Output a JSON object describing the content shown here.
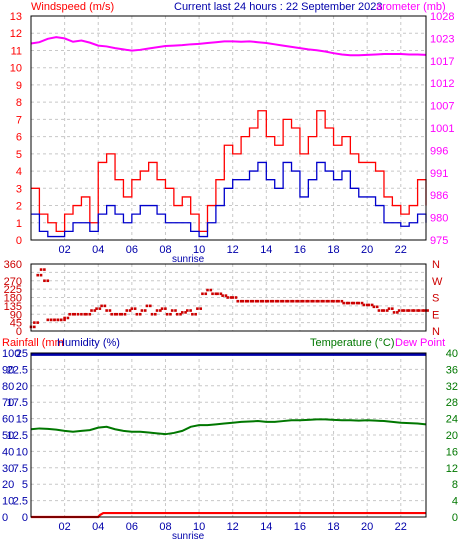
{
  "header": {
    "left_label": "Windspeed (m/s)",
    "center_label": "Current last 24 hours : 22 September 2023",
    "right_label": "arometer (mb)"
  },
  "x_axis": {
    "hour_ticks": [
      "02",
      "04",
      "06",
      "08",
      "10",
      "12",
      "14",
      "16",
      "18",
      "20",
      "22"
    ],
    "sunrise_label": "sunrise"
  },
  "colors": {
    "wind_gust": "#ff0000",
    "wind_avg": "#0000cc",
    "barometer": "#ff00ff",
    "direction": "#cc0000",
    "humidity": "#0000aa",
    "temperature": "#007700",
    "rainfall": "#ff0000",
    "dewpoint": "#ff00ff",
    "grid": "#c8c8c8"
  },
  "chart_data": [
    {
      "type": "line",
      "panel": "wind_barometer",
      "left_axis": {
        "label": "Windspeed (m/s)",
        "ticks": [
          "0",
          "1",
          "2",
          "3",
          "4",
          "5",
          "6",
          "7",
          "8",
          "9",
          "10",
          "11",
          "12",
          "13"
        ],
        "range": [
          0,
          13
        ]
      },
      "right_axis": {
        "label": "arometer (mb)",
        "ticks": [
          "975",
          "980",
          "986",
          "991",
          "996",
          "1001",
          "1007",
          "1012",
          "1017",
          "1023",
          "1028"
        ],
        "range": [
          975,
          1028
        ]
      },
      "x_range_hours": [
        0,
        23.5
      ],
      "series": [
        {
          "name": "Barometer",
          "axis": "right",
          "x": [
            0,
            0.5,
            1,
            1.5,
            2,
            2.5,
            3,
            3.5,
            4,
            4.5,
            5,
            5.5,
            6,
            6.5,
            7,
            7.5,
            8,
            8.5,
            9,
            9.5,
            10,
            10.5,
            11,
            11.5,
            12,
            12.5,
            13,
            13.5,
            14,
            14.5,
            15,
            15.5,
            16,
            16.5,
            17,
            17.5,
            18,
            18.5,
            19,
            19.5,
            20,
            20.5,
            21,
            21.5,
            22,
            22.5,
            23,
            23.5
          ],
          "values": [
            1021.5,
            1021.8,
            1022.6,
            1023.0,
            1022.7,
            1021.9,
            1022.2,
            1021.7,
            1021.0,
            1020.8,
            1020.4,
            1020.1,
            1019.8,
            1020.0,
            1020.3,
            1020.6,
            1020.9,
            1021.0,
            1021.1,
            1021.3,
            1021.4,
            1021.6,
            1021.8,
            1022.0,
            1022.0,
            1021.9,
            1022.0,
            1021.8,
            1021.6,
            1021.3,
            1021.0,
            1020.7,
            1020.4,
            1020.1,
            1019.9,
            1019.6,
            1019.2,
            1018.9,
            1018.7,
            1018.7,
            1018.8,
            1018.9,
            1019.0,
            1019.0,
            1019.0,
            1018.9,
            1018.9,
            1018.8
          ]
        },
        {
          "name": "Wind gust",
          "axis": "left",
          "x": [
            0,
            0.5,
            1,
            1.5,
            2,
            2.5,
            3,
            3.5,
            4,
            4.5,
            5,
            5.5,
            6,
            6.5,
            7,
            7.5,
            8,
            8.5,
            9,
            9.5,
            10,
            10.5,
            11,
            11.5,
            12,
            12.5,
            13,
            13.5,
            14,
            14.5,
            15,
            15.5,
            16,
            16.5,
            17,
            17.5,
            18,
            18.5,
            19,
            19.5,
            20,
            20.5,
            21,
            21.5,
            22,
            22.5,
            23,
            23.5
          ],
          "values": [
            3.0,
            1.5,
            1.0,
            0.5,
            1.5,
            2.0,
            2.5,
            1.0,
            4.5,
            5.0,
            3.5,
            2.5,
            3.5,
            4.0,
            4.5,
            3.5,
            3.0,
            2.0,
            2.5,
            1.5,
            0.5,
            2.0,
            3.5,
            5.5,
            5.0,
            6.0,
            6.5,
            7.5,
            6.0,
            5.5,
            7.0,
            6.5,
            5.0,
            6.0,
            7.5,
            6.5,
            5.5,
            6.0,
            5.0,
            4.5,
            4.5,
            4.0,
            2.5,
            2.0,
            1.5,
            2.0,
            3.5,
            2.0
          ]
        },
        {
          "name": "Wind average",
          "axis": "left",
          "x": [
            0,
            0.5,
            1,
            1.5,
            2,
            2.5,
            3,
            3.5,
            4,
            4.5,
            5,
            5.5,
            6,
            6.5,
            7,
            7.5,
            8,
            8.5,
            9,
            9.5,
            10,
            10.5,
            11,
            11.5,
            12,
            12.5,
            13,
            13.5,
            14,
            14.5,
            15,
            15.5,
            16,
            16.5,
            17,
            17.5,
            18,
            18.5,
            19,
            19.5,
            20,
            20.5,
            21,
            21.5,
            22,
            22.5,
            23,
            23.5
          ],
          "values": [
            1.5,
            0.5,
            0.2,
            0.2,
            0.5,
            1.0,
            1.0,
            0.5,
            1.5,
            2.0,
            1.5,
            1.0,
            1.5,
            2.0,
            2.0,
            1.5,
            1.0,
            1.0,
            1.0,
            0.5,
            0.2,
            1.0,
            2.0,
            3.0,
            3.5,
            3.5,
            4.0,
            4.5,
            3.5,
            3.0,
            4.5,
            4.0,
            2.5,
            3.5,
            4.5,
            4.0,
            3.5,
            4.0,
            3.0,
            2.5,
            2.5,
            2.0,
            1.0,
            1.0,
            0.8,
            1.0,
            1.5,
            1.0
          ]
        }
      ]
    },
    {
      "type": "scatter",
      "panel": "wind_direction",
      "left_axis": {
        "ticks": [
          "0",
          "45",
          "90",
          "135",
          "180",
          "225",
          "270",
          "315",
          "360"
        ],
        "range": [
          0,
          360
        ]
      },
      "right_axis": {
        "ticks": [
          "N",
          "E",
          "S",
          "W",
          "N"
        ],
        "range": [
          0,
          360
        ]
      },
      "x_range_hours": [
        0,
        23.5
      ],
      "series": [
        {
          "name": "Wind direction",
          "x": [
            0,
            0.2,
            0.4,
            0.6,
            0.8,
            1.0,
            1.2,
            1.4,
            1.6,
            1.8,
            2.0,
            2.3,
            2.6,
            3.0,
            3.3,
            3.6,
            3.9,
            4.2,
            4.5,
            4.8,
            5.1,
            5.4,
            5.7,
            6.0,
            6.3,
            6.6,
            6.9,
            7.2,
            7.5,
            7.8,
            8.1,
            8.4,
            8.7,
            9.0,
            9.3,
            9.6,
            9.9,
            10.2,
            10.5,
            10.8,
            11.1,
            11.4,
            11.7,
            12.0,
            12.3,
            12.6,
            12.9,
            13.2,
            13.5,
            13.8,
            14.1,
            14.4,
            14.7,
            15.0,
            15.3,
            15.6,
            15.9,
            16.2,
            16.5,
            16.8,
            17.1,
            17.4,
            17.7,
            18.0,
            18.3,
            18.6,
            18.9,
            19.2,
            19.5,
            19.8,
            20.1,
            20.4,
            20.7,
            21.0,
            21.3,
            21.6,
            21.9,
            22.2,
            22.5,
            22.8,
            23.1,
            23.4
          ],
          "values": [
            22,
            45,
            300,
            330,
            270,
            60,
            60,
            60,
            60,
            60,
            70,
            90,
            90,
            90,
            90,
            110,
            120,
            135,
            110,
            90,
            90,
            90,
            110,
            120,
            90,
            110,
            135,
            90,
            110,
            120,
            90,
            110,
            90,
            100,
            110,
            90,
            120,
            200,
            220,
            200,
            200,
            190,
            180,
            180,
            160,
            160,
            160,
            160,
            160,
            160,
            160,
            160,
            160,
            160,
            160,
            160,
            160,
            160,
            160,
            160,
            160,
            160,
            160,
            160,
            160,
            150,
            150,
            150,
            150,
            140,
            140,
            130,
            110,
            110,
            120,
            100,
            110,
            110,
            110,
            110,
            110,
            110
          ]
        }
      ]
    },
    {
      "type": "line",
      "panel": "rain_humidity_temperature",
      "left_axis": {
        "labels": [
          "Rainfall (mm",
          "Humidity (%)"
        ],
        "ticks": [
          "0",
          "10",
          "20",
          "30",
          "40",
          "50",
          "60",
          "70",
          "80",
          "90",
          "100"
        ],
        "range": [
          0,
          100
        ]
      },
      "left_inner_axis": {
        "ticks": [
          "0",
          "2.5",
          "5",
          "7.5",
          "10",
          "12.5",
          "15",
          "17.5",
          "20",
          "22.5",
          "25"
        ],
        "range": [
          0,
          25
        ]
      },
      "right_axis": {
        "labels": [
          "Temperature (°C)",
          "Dew Point"
        ],
        "ticks": [
          "0",
          "4",
          "8",
          "12",
          "16",
          "20",
          "24",
          "28",
          "32",
          "36",
          "40"
        ],
        "range": [
          0,
          40
        ]
      },
      "x_range_hours": [
        0,
        23.5
      ],
      "series": [
        {
          "name": "Humidity",
          "axis": "left",
          "x": [
            0,
            23.5
          ],
          "values": [
            99,
            99
          ]
        },
        {
          "name": "Temperature",
          "axis": "right",
          "x": [
            0,
            0.5,
            1,
            1.5,
            2,
            2.5,
            3,
            3.5,
            4,
            4.5,
            5,
            5.5,
            6,
            6.5,
            7,
            7.5,
            8,
            8.5,
            9,
            9.5,
            10,
            10.5,
            11,
            11.5,
            12,
            12.5,
            13,
            13.5,
            14,
            14.5,
            15,
            15.5,
            16,
            16.5,
            17,
            17.5,
            18,
            18.5,
            19,
            19.5,
            20,
            20.5,
            21,
            21.5,
            22,
            22.5,
            23,
            23.5
          ],
          "values": [
            21.4,
            21.6,
            21.5,
            21.3,
            21.0,
            20.8,
            21.0,
            21.2,
            21.8,
            22.0,
            21.4,
            21.0,
            20.8,
            20.8,
            20.6,
            20.4,
            20.2,
            20.5,
            21.0,
            22.0,
            22.4,
            22.4,
            22.6,
            22.8,
            23.0,
            23.2,
            23.3,
            23.4,
            23.2,
            23.2,
            23.4,
            23.6,
            23.6,
            23.7,
            23.8,
            23.8,
            23.7,
            23.6,
            23.6,
            23.5,
            23.6,
            23.5,
            23.4,
            23.2,
            23.0,
            22.9,
            22.8,
            22.6
          ]
        },
        {
          "name": "Rainfall",
          "axis": "left_inner",
          "x": [
            0,
            4.0,
            4.1,
            4.3,
            23.5
          ],
          "values": [
            0,
            0,
            0.3,
            0.6,
            0.6
          ]
        }
      ]
    }
  ]
}
